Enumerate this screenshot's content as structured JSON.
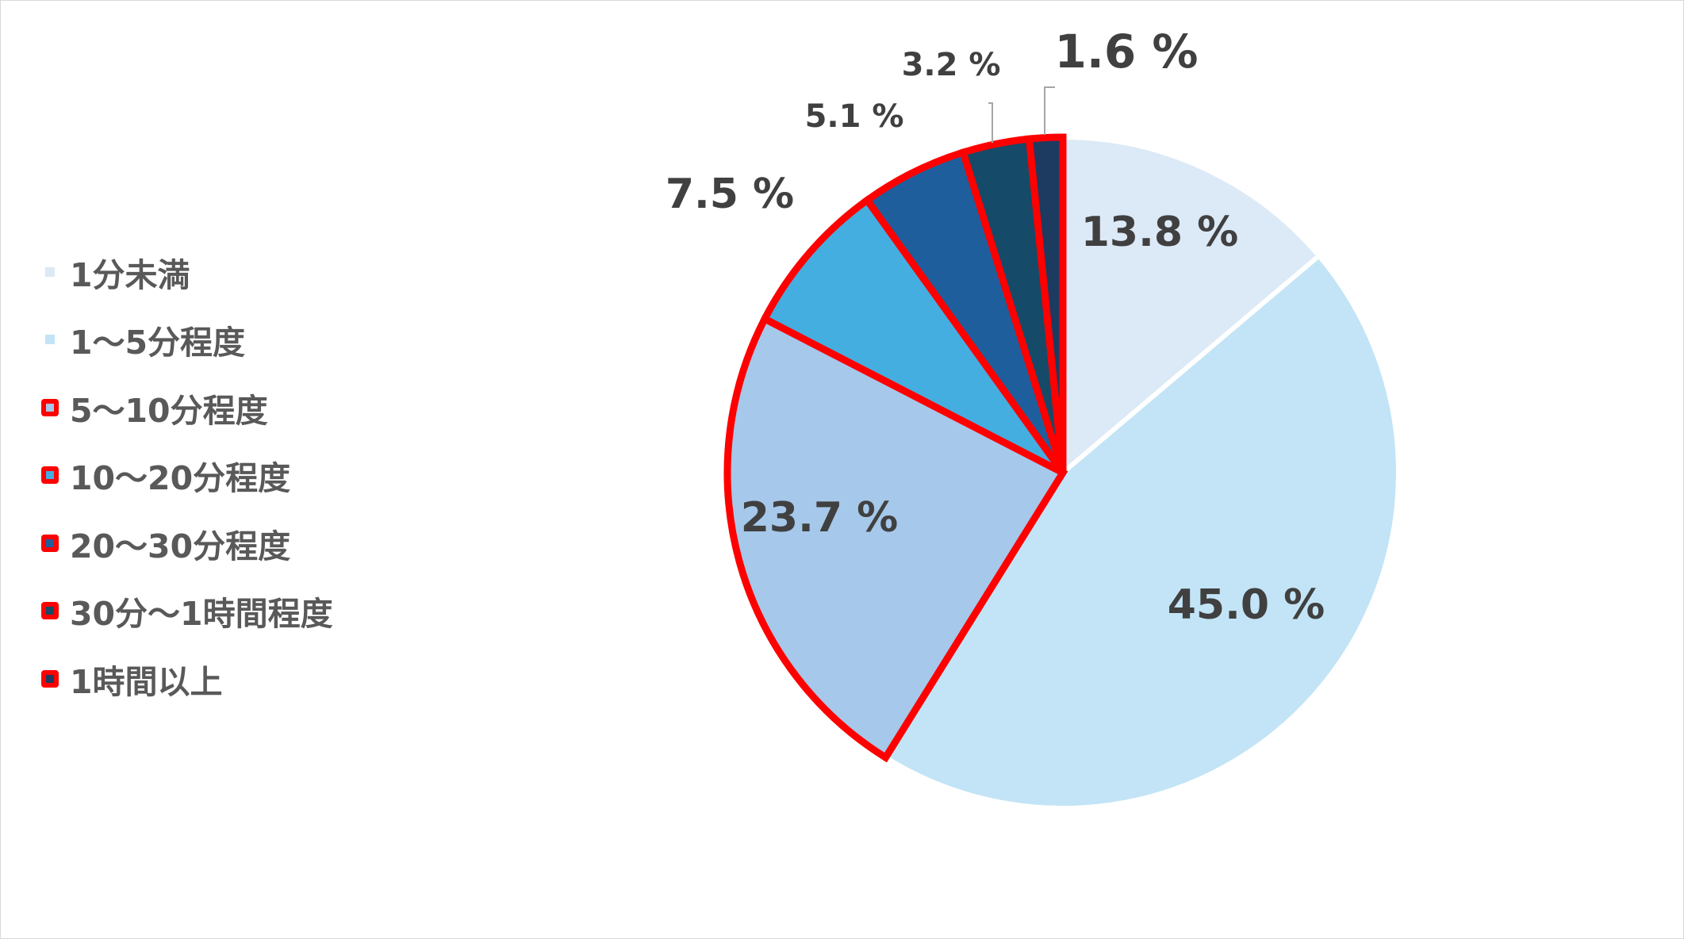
{
  "chart_data": {
    "type": "pie",
    "categories": [
      "1分未満",
      "1〜5分程度",
      "5〜10分程度",
      "10〜20分程度",
      "20〜30分程度",
      "30分〜1時間程度",
      "1時間以上"
    ],
    "values": [
      13.8,
      45.0,
      23.7,
      7.5,
      5.1,
      3.2,
      1.6
    ],
    "data_labels": [
      "13.8 %",
      "45.0 %",
      "23.7 %",
      "7.5 %",
      "5.1 %",
      "3.2 %",
      "1.6 %"
    ],
    "colors": [
      "#dce9f6",
      "#c2e4f6",
      "#a6c8ea",
      "#45aee0",
      "#1f5e9c",
      "#154a68",
      "#1d3a60"
    ],
    "highlighted": [
      false,
      false,
      true,
      true,
      true,
      true,
      true
    ],
    "highlight_color": "#ff0000",
    "start_angle_deg": 0,
    "direction": "clockwise",
    "legend_position": "left"
  }
}
